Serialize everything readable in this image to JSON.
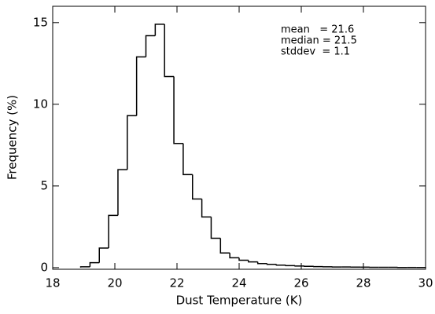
{
  "chart_data": {
    "type": "histogram",
    "xlabel": "Dust Temperature (K)",
    "ylabel": "Frequency (%)",
    "annotations": [
      "mean   = 21.6",
      "median = 21.5",
      "stddev  = 1.1"
    ],
    "bins": [
      18.9,
      19.2,
      19.5,
      19.8,
      20.1,
      20.4,
      20.7,
      21.0,
      21.3,
      21.6,
      21.9,
      22.2,
      22.5,
      22.8,
      23.1,
      23.4,
      23.7,
      24.0,
      24.3,
      24.6,
      24.9,
      25.2,
      25.5,
      25.8,
      26.1,
      26.4,
      26.7,
      27.0,
      27.3,
      27.6,
      27.9,
      28.2,
      28.5,
      28.8,
      29.1,
      29.4,
      29.7,
      30.0
    ],
    "values": [
      0.05,
      0.3,
      1.2,
      3.2,
      6.0,
      9.3,
      12.9,
      14.2,
      14.9,
      11.7,
      7.6,
      5.7,
      4.2,
      3.1,
      1.8,
      0.9,
      0.6,
      0.45,
      0.35,
      0.25,
      0.2,
      0.15,
      0.12,
      0.1,
      0.08,
      0.06,
      0.05,
      0.04,
      0.04,
      0.03,
      0.03,
      0.02,
      0.02,
      0.02,
      0.01,
      0.01,
      0.01
    ],
    "color": "#000000",
    "xlim": [
      18,
      30
    ],
    "xticks": [
      18,
      20,
      22,
      24,
      26,
      28,
      30
    ],
    "ylim": [
      -0.1,
      16
    ],
    "yticks": [
      0,
      5,
      10,
      15
    ]
  }
}
